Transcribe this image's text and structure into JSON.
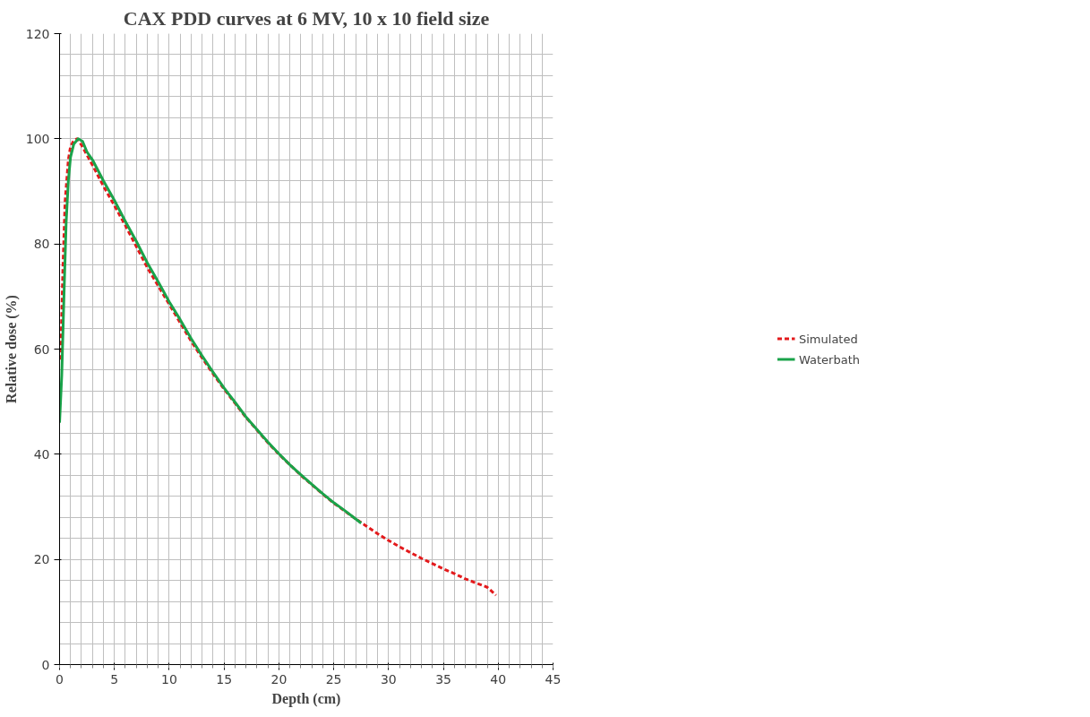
{
  "chart_data": {
    "type": "line",
    "title": "CAX PDD curves at 6 MV, 10 x 10 field size",
    "xlabel": "Depth (cm)",
    "ylabel": "Relative dose (%)",
    "xlim": [
      0,
      45
    ],
    "xticks": [
      0,
      5,
      10,
      15,
      20,
      25,
      30,
      35,
      40,
      45
    ],
    "ylim": [
      0,
      120
    ],
    "yticks": [
      0,
      20,
      40,
      60,
      80,
      100,
      120
    ],
    "grid": true,
    "legend": "right",
    "marker": "none",
    "series": [
      {
        "name": "Simulated",
        "color": "#e31a1c",
        "line_style": "dashed",
        "x": [
          0.1,
          0.3,
          0.5,
          0.8,
          1.0,
          1.3,
          1.6,
          2,
          3,
          4,
          5,
          6,
          7,
          8,
          9,
          10,
          11,
          12,
          13,
          14,
          15,
          16,
          17,
          18,
          19,
          20,
          21,
          22,
          23,
          24,
          25,
          26,
          27,
          28,
          29,
          30,
          31,
          32,
          33,
          34,
          35,
          36,
          37,
          38,
          39,
          39.8
        ],
        "values": [
          58,
          75,
          88,
          96,
          98.5,
          99.7,
          100,
          98.8,
          95,
          91,
          87.3,
          83.5,
          79.5,
          75.5,
          72,
          68.5,
          65,
          61.5,
          58.3,
          55.3,
          52.4,
          49.7,
          47,
          44.6,
          42.2,
          40,
          38,
          36,
          34.2,
          32.4,
          30.7,
          29.2,
          27.7,
          26.3,
          24.9,
          23.6,
          22.4,
          21.3,
          20.2,
          19.2,
          18.2,
          17.3,
          16.3,
          15.5,
          14.7,
          13.2
        ]
      },
      {
        "name": "Waterbath",
        "color": "#1aa34a",
        "line_style": "solid",
        "x": [
          0,
          0.2,
          0.4,
          0.6,
          0.8,
          1.0,
          1.3,
          1.7,
          2.1,
          2.5,
          3,
          3.5,
          4,
          5,
          6,
          7,
          8,
          9,
          10,
          11,
          12,
          13,
          14,
          15,
          16,
          17,
          18,
          19,
          20,
          21,
          22,
          23,
          24,
          25,
          26,
          27,
          27.5
        ],
        "values": [
          46,
          55,
          70,
          84,
          92,
          96.5,
          99,
          100,
          99.5,
          97.5,
          96,
          94,
          92,
          88.3,
          84.3,
          80.5,
          76.4,
          72.8,
          69,
          65.6,
          62,
          58.7,
          55.6,
          52.6,
          49.9,
          47.1,
          44.7,
          42.3,
          40.1,
          38,
          36.1,
          34.3,
          32.5,
          30.8,
          29.3,
          27.7,
          26.9
        ]
      }
    ]
  }
}
